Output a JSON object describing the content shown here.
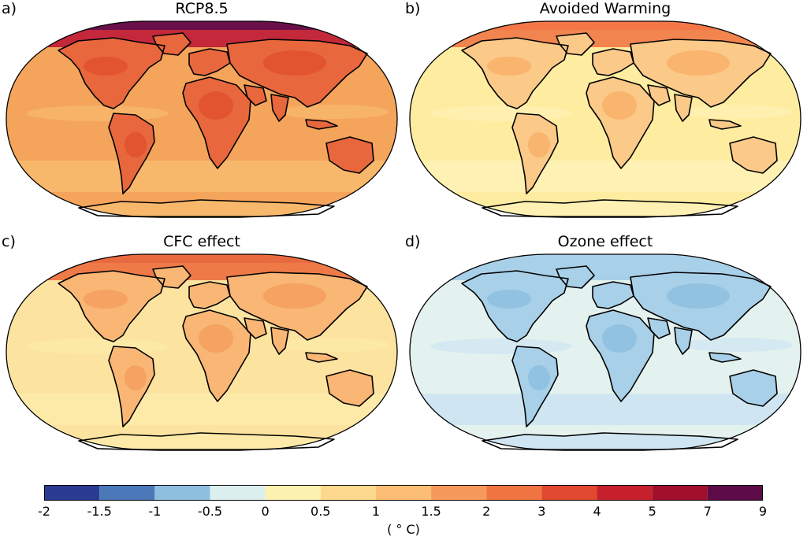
{
  "panels": [
    {
      "label": "a)",
      "title": "RCP8.5",
      "ocean": "#f5a45b",
      "land": "#e8673d",
      "polar": "#c3283b",
      "ice": "#6b0f49",
      "patch": "#e1542f",
      "southband": "#f8b86c"
    },
    {
      "label": "b)",
      "title": "Avoided Warming",
      "ocean": "#feeca0",
      "land": "#fbc988",
      "polar": "#f2844f",
      "ice": "#f57748",
      "patch": "#f9b46e",
      "southband": "#fff1b3"
    },
    {
      "label": "c)",
      "title": "CFC effect",
      "ocean": "#fde3a0",
      "land": "#f9b674",
      "polar": "#ee7a48",
      "ice": "#ea6a3f",
      "patch": "#f5a262",
      "southband": "#fdeaa8"
    },
    {
      "label": "d)",
      "title": "Ozone effect",
      "ocean": "#e4f2ef",
      "land": "#a8d0e8",
      "polar": "#a8d0e8",
      "ice": "#a8d0e8",
      "patch": "#92c2e1",
      "southband": "#cfe6f2"
    }
  ],
  "colorbar": {
    "ticks": [
      "-2",
      "-1.5",
      "-1",
      "-0.5",
      "0",
      "0.5",
      "1",
      "1.5",
      "2",
      "3",
      "4",
      "5",
      "7",
      "9"
    ],
    "colors": [
      "#2b3a92",
      "#4a78b8",
      "#8fbfdf",
      "#dcefef",
      "#fdf1b0",
      "#fcd98d",
      "#fbbd74",
      "#f59a5a",
      "#ef7442",
      "#e0482f",
      "#c6202c",
      "#a00f2c",
      "#5c0b48"
    ],
    "unit": "( ° C)"
  }
}
